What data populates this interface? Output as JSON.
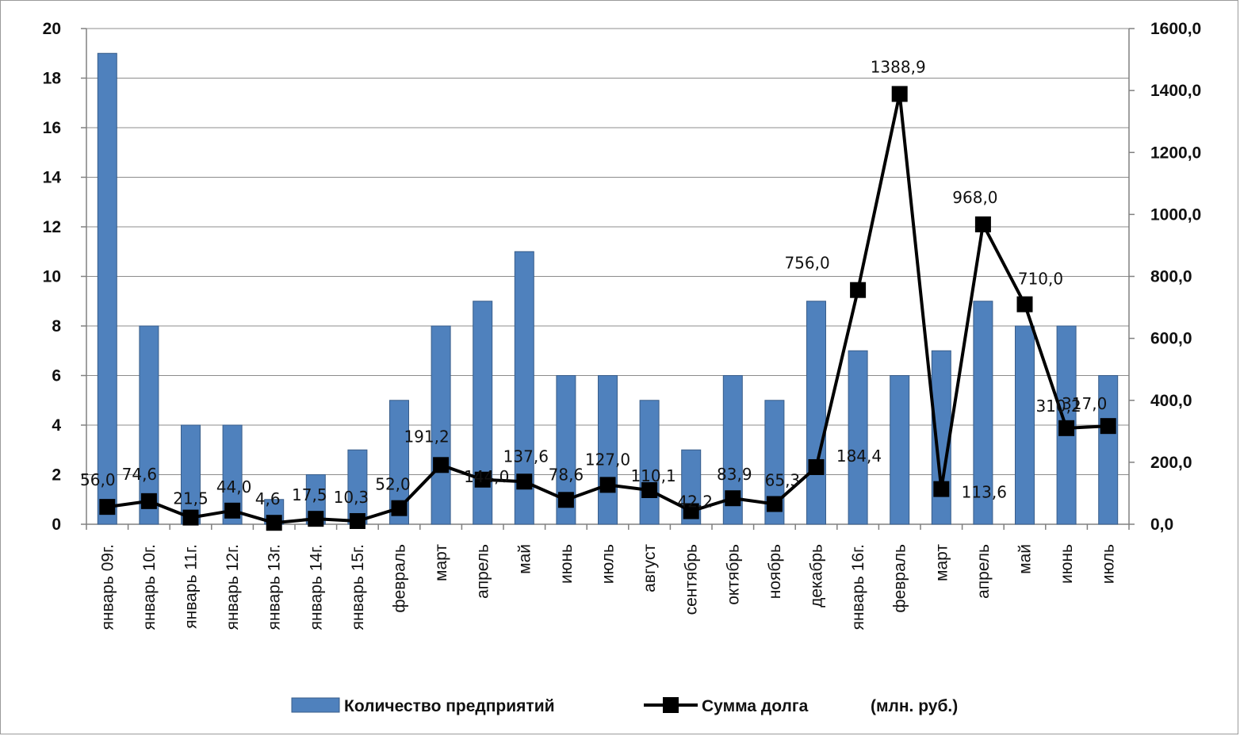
{
  "chart_data": {
    "type": "bar",
    "categories": [
      "январь 09г.",
      "январь 10г.",
      "январь 11г.",
      "январь 12г.",
      "январь 13г.",
      "январь 14г.",
      "январь 15г.",
      "февраль",
      "март",
      "апрель",
      "май",
      "июнь",
      "июль",
      "август",
      "сентябрь",
      "октябрь",
      "ноябрь",
      "декабрь",
      "январь 16г.",
      "февраль",
      "март",
      "апрель",
      "май",
      "июнь",
      "июль"
    ],
    "series": [
      {
        "name": "Количество предприятий",
        "type": "bar",
        "axis": "left",
        "color": "#4f81bd",
        "values": [
          19,
          8,
          4,
          4,
          1,
          2,
          3,
          5,
          8,
          9,
          11,
          6,
          6,
          5,
          3,
          6,
          5,
          9,
          7,
          6,
          7,
          9,
          8,
          8,
          6
        ]
      },
      {
        "name": "Сумма долга",
        "type": "line",
        "axis": "right",
        "color": "#000000",
        "marker": "square",
        "values": [
          56.0,
          74.6,
          21.5,
          44.0,
          4.6,
          17.5,
          10.3,
          52.0,
          191.2,
          144.0,
          137.6,
          78.6,
          127.0,
          110.1,
          42.2,
          83.9,
          65.3,
          184.4,
          756.0,
          1388.9,
          113.6,
          968.0,
          710.0,
          310.2,
          317.0
        ],
        "labels": [
          "56,0",
          "74,6",
          "21,5",
          "44,0",
          "4,6",
          "17,5",
          "10,3",
          "52,0",
          "191,2",
          "144,0",
          "137,6",
          "78,6",
          "127,0",
          "110,1",
          "42,2",
          "83,9",
          "65,3",
          "184,4",
          "756,0",
          "1388,9",
          "113,6",
          "968,0",
          "710,0",
          "310,2",
          "317,0"
        ]
      }
    ],
    "y_left": {
      "ylim": [
        0,
        20
      ],
      "ticks": [
        "0",
        "2",
        "4",
        "6",
        "8",
        "10",
        "12",
        "14",
        "16",
        "18",
        "20"
      ]
    },
    "y_right": {
      "ylim": [
        0,
        1600
      ],
      "ticks": [
        "0,0",
        "200,0",
        "400,0",
        "600,0",
        "800,0",
        "1000,0",
        "1200,0",
        "1400,0",
        "1600,0"
      ]
    },
    "grid": true,
    "legend": {
      "position": "bottom",
      "items": [
        "Количество предприятий",
        "Сумма долга"
      ],
      "unit_note": "(млн. руб.)"
    }
  }
}
